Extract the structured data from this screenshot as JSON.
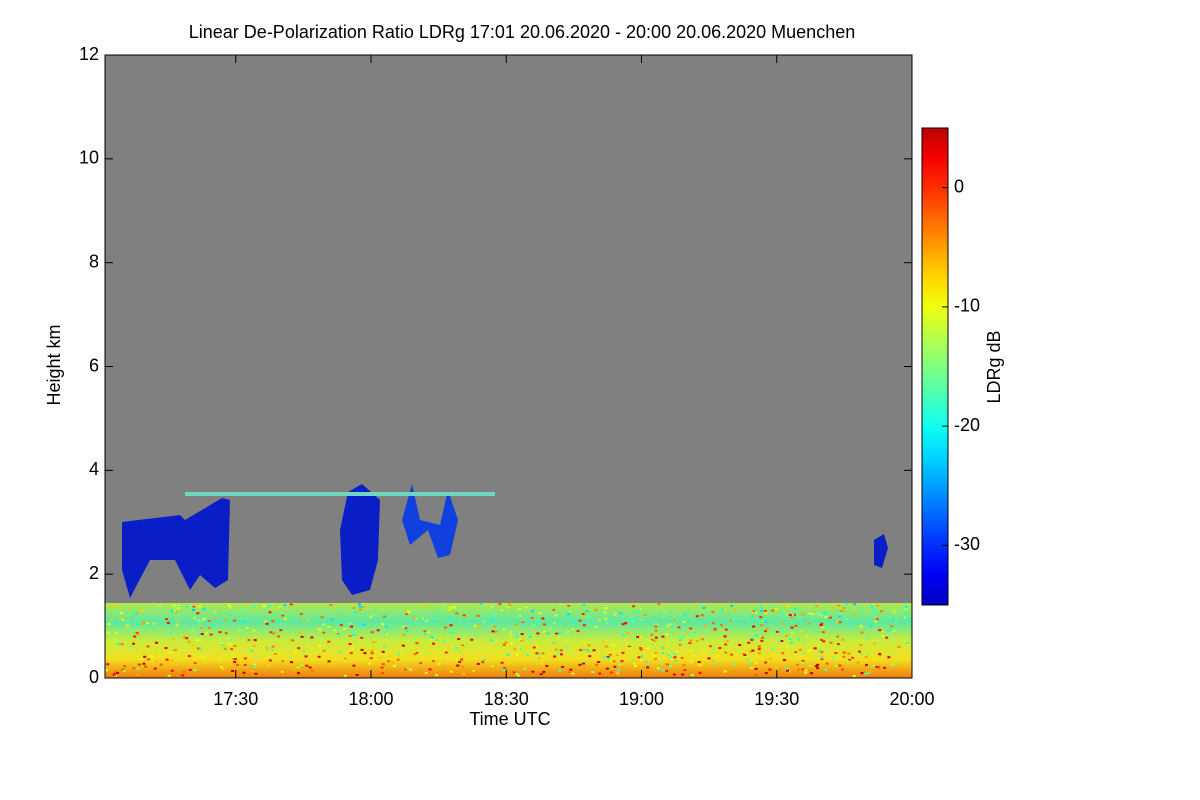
{
  "chart_data": {
    "type": "heatmap",
    "title": "Linear De-Polarization Ratio LDRg   17:01 20.06.2020 - 20:00 20.06.2020 Muenchen",
    "x_label": "Time UTC",
    "y_label": "Height km",
    "colorbar_label": "LDRg dB",
    "xlim": [
      17.0167,
      20.0
    ],
    "xticks": [
      {
        "value": 17.5,
        "label": "17:30"
      },
      {
        "value": 18.0,
        "label": "18:00"
      },
      {
        "value": 18.5,
        "label": "18:30"
      },
      {
        "value": 19.0,
        "label": "19:00"
      },
      {
        "value": 19.5,
        "label": "19:30"
      },
      {
        "value": 20.0,
        "label": "20:00"
      }
    ],
    "ylim": [
      0,
      12
    ],
    "yticks": [
      0,
      2,
      4,
      6,
      8,
      10,
      12
    ],
    "zlim": [
      -35,
      5
    ],
    "zticks": [
      0,
      -10,
      -20,
      -30
    ],
    "colormap": "jet",
    "background_color": "#808080"
  }
}
